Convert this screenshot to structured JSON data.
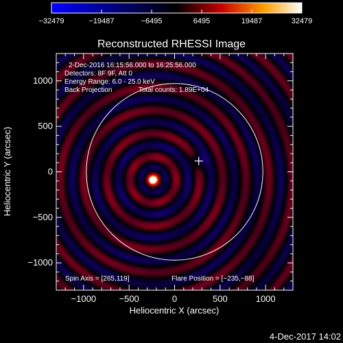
{
  "chart_data": {
    "type": "heatmap",
    "title": "Reconstructed RHESSI Image",
    "xlabel": "Heliocentric X (arcsec)",
    "ylabel": "Heliocentric Y (arcsec)",
    "xlim": [
      -1300,
      1300
    ],
    "ylim": [
      -1300,
      1300
    ],
    "xticks": [
      -1000,
      -500,
      0,
      500,
      1000
    ],
    "xtick_labels": [
      "−1000",
      "−500",
      "0",
      "500",
      "1000"
    ],
    "yticks": [
      -1000,
      -500,
      0,
      500,
      1000
    ],
    "ytick_labels": [
      "−1000",
      "−500",
      "0",
      "500",
      "1000"
    ],
    "colorbar": {
      "ticks": [
        -32479,
        -19487,
        -6495,
        6495,
        19487,
        32479
      ],
      "tick_labels": [
        "−32479",
        "−19487",
        "−6495",
        "6495",
        "19487",
        "32479"
      ],
      "range": [
        -32479,
        32479
      ]
    },
    "source": {
      "x": -235,
      "y": -88,
      "peak": 32479
    },
    "ring_wavelength_arcsec": 255,
    "solar_disk": {
      "cx": 0,
      "cy": 0,
      "r": 970
    },
    "spin_axis_point": {
      "x": 265,
      "y": 119
    },
    "annotations": {
      "time_range": "2-Dec-2016 16:15:56.000 to 16:25:56.000",
      "detectors": "Detectors: 8F 9F, Att 0",
      "energy": "Energy Range: 6.0 - 25.0 keV",
      "method": "Back Projection",
      "counts": "Total counts: 1.89E+04",
      "spin_axis": "Spin Axis = [265,119]",
      "flare_position": "Flare Position = [−235,−88]"
    },
    "footer_date": "4-Dec-2017 14:02",
    "colors": {
      "negative": "#0000ff",
      "zero": "#000000",
      "mid": "#c80000",
      "high": "#ffa000",
      "max": "#ffffff"
    }
  }
}
